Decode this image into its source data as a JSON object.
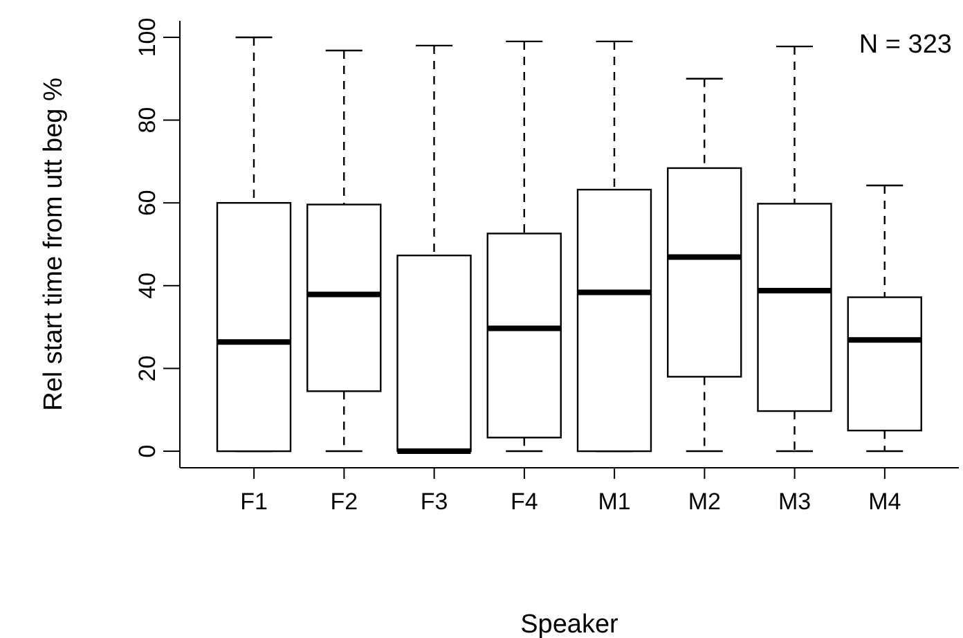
{
  "chart_data": {
    "type": "box",
    "xlabel": "Speaker",
    "ylabel": "Rel start time from utt beg %",
    "categories": [
      "F1",
      "F2",
      "F3",
      "F4",
      "M1",
      "M2",
      "M3",
      "M4"
    ],
    "boxes": [
      {
        "low": 0,
        "q1": 0,
        "median": 26.4,
        "q3": 60,
        "high": 100
      },
      {
        "low": 0,
        "q1": 14.5,
        "median": 37.9,
        "q3": 59.6,
        "high": 96.8
      },
      {
        "low": 0,
        "q1": 0,
        "median": 0,
        "q3": 47.3,
        "high": 98
      },
      {
        "low": 0,
        "q1": 3.3,
        "median": 29.7,
        "q3": 52.6,
        "high": 99
      },
      {
        "low": 0,
        "q1": 0,
        "median": 38.4,
        "q3": 63.2,
        "high": 99
      },
      {
        "low": 0,
        "q1": 18,
        "median": 46.9,
        "q3": 68.4,
        "high": 90
      },
      {
        "low": 0,
        "q1": 9.7,
        "median": 38.8,
        "q3": 59.8,
        "high": 97.8
      },
      {
        "low": 0,
        "q1": 5,
        "median": 26.9,
        "q3": 37.2,
        "high": 64.2
      }
    ],
    "ylim": [
      -4,
      104
    ],
    "yticks": [
      0,
      20,
      40,
      60,
      80,
      100
    ],
    "annotations": [
      "N = 323"
    ]
  }
}
